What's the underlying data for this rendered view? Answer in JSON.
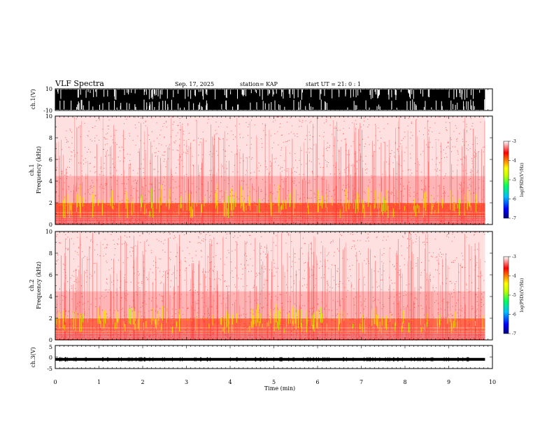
{
  "header": {
    "title": "VLF Spectra",
    "date": "Sep. 17, 2025",
    "station": "station= KAP",
    "start_ut": "start  UT =   21: 0  : 1"
  },
  "chart_data": [
    {
      "type": "line",
      "name": "ch1-waveform",
      "ylabel": "ch.1(V)",
      "ylim": [
        -10,
        10
      ],
      "yticks": [
        "10",
        "-10"
      ],
      "xlim": [
        0,
        10
      ],
      "description_values": "dense saturated waveform between -10 and 10 V over 0-9.83 min"
    },
    {
      "type": "heatmap",
      "name": "ch1-spectrogram",
      "ylabel_top": "ch.1",
      "ylabel": "Frequency (kHz)",
      "ylim": [
        0,
        10
      ],
      "yticks": [
        "0",
        "2",
        "4",
        "6",
        "8",
        "10"
      ],
      "xlim": [
        0,
        10
      ],
      "data_end_min": 9.83,
      "bands": [
        {
          "fmin": 0,
          "fmax": 0.5,
          "level": "high"
        },
        {
          "fmin": 0.5,
          "fmax": 2.0,
          "level": "very high"
        },
        {
          "fmin": 2.0,
          "fmax": 4.5,
          "level": "medium"
        },
        {
          "fmin": 4.5,
          "fmax": 10,
          "level": "low"
        }
      ],
      "colorbar": {
        "label": "log(PSD)(V²/Hz)",
        "ticks": [
          "-3",
          "-4",
          "-5",
          "-6",
          "-7"
        ],
        "range": [
          -7,
          -3
        ]
      }
    },
    {
      "type": "heatmap",
      "name": "ch2-spectrogram",
      "ylabel_top": "ch.2",
      "ylabel": "Frequency (kHz)",
      "ylim": [
        0,
        10
      ],
      "yticks": [
        "0",
        "2",
        "4",
        "6",
        "8",
        "10"
      ],
      "xlim": [
        0,
        10
      ],
      "data_end_min": 9.83,
      "bands": [
        {
          "fmin": 0,
          "fmax": 0.5,
          "level": "high"
        },
        {
          "fmin": 0.5,
          "fmax": 2.0,
          "level": "high"
        },
        {
          "fmin": 2.0,
          "fmax": 4.5,
          "level": "medium"
        },
        {
          "fmin": 4.5,
          "fmax": 10,
          "level": "low"
        }
      ],
      "colorbar": {
        "label": "log(PSD)(V²/Hz)",
        "ticks": [
          "-3",
          "-4",
          "-5",
          "-6",
          "-7"
        ],
        "range": [
          -7,
          -3
        ]
      }
    },
    {
      "type": "line",
      "name": "ch3-waveform",
      "ylabel": "ch.3(V)",
      "ylim": [
        -5,
        5
      ],
      "yticks": [
        "5",
        "0",
        "-5"
      ],
      "xlim": [
        0,
        10
      ],
      "description_values": "thin band near -1 V over 0-9.83 min"
    }
  ],
  "xaxis": {
    "label": "Time (min)",
    "ticks": [
      "0",
      "1",
      "2",
      "3",
      "4",
      "5",
      "6",
      "7",
      "8",
      "9",
      "10"
    ]
  },
  "colors": {
    "scale": [
      "#000080",
      "#0000ff",
      "#00c0ff",
      "#00ff60",
      "#c0ff00",
      "#ffff00",
      "#ff8000",
      "#ff0000",
      "#ffffff"
    ]
  }
}
